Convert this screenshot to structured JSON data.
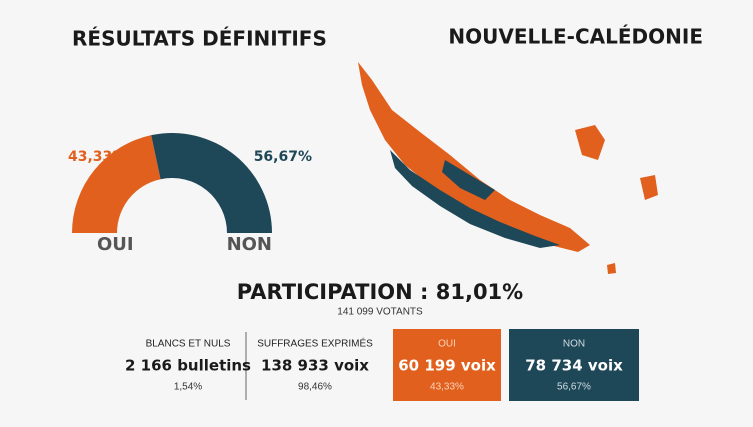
{
  "chart_data": {
    "type": "half-donut",
    "title": "RÉSULTATS DÉFINITIFS",
    "categories": [
      "OUI",
      "NON"
    ],
    "values": [
      43.33,
      56.67
    ],
    "value_labels": [
      "43,33%",
      "56,67%"
    ],
    "colors": [
      "#e1601d",
      "#1e4757"
    ]
  },
  "header": {
    "region": "NOUVELLE-CALÉDONIE"
  },
  "participation": {
    "label": "PARTICIPATION : 81,01%",
    "votants": "141 099 VOTANTS"
  },
  "stats": [
    {
      "label": "BLANCS ET NULS",
      "count": "2 166 bulletins",
      "share": "1,54%"
    },
    {
      "label": "SUFFRAGES EXPRIMÉS",
      "count": "138 933 voix",
      "share": "98,46%"
    },
    {
      "label": "OUI",
      "count": "60 199 voix",
      "share": "43,33%"
    },
    {
      "label": "NON",
      "count": "78 734 voix",
      "share": "56,67%"
    }
  ]
}
